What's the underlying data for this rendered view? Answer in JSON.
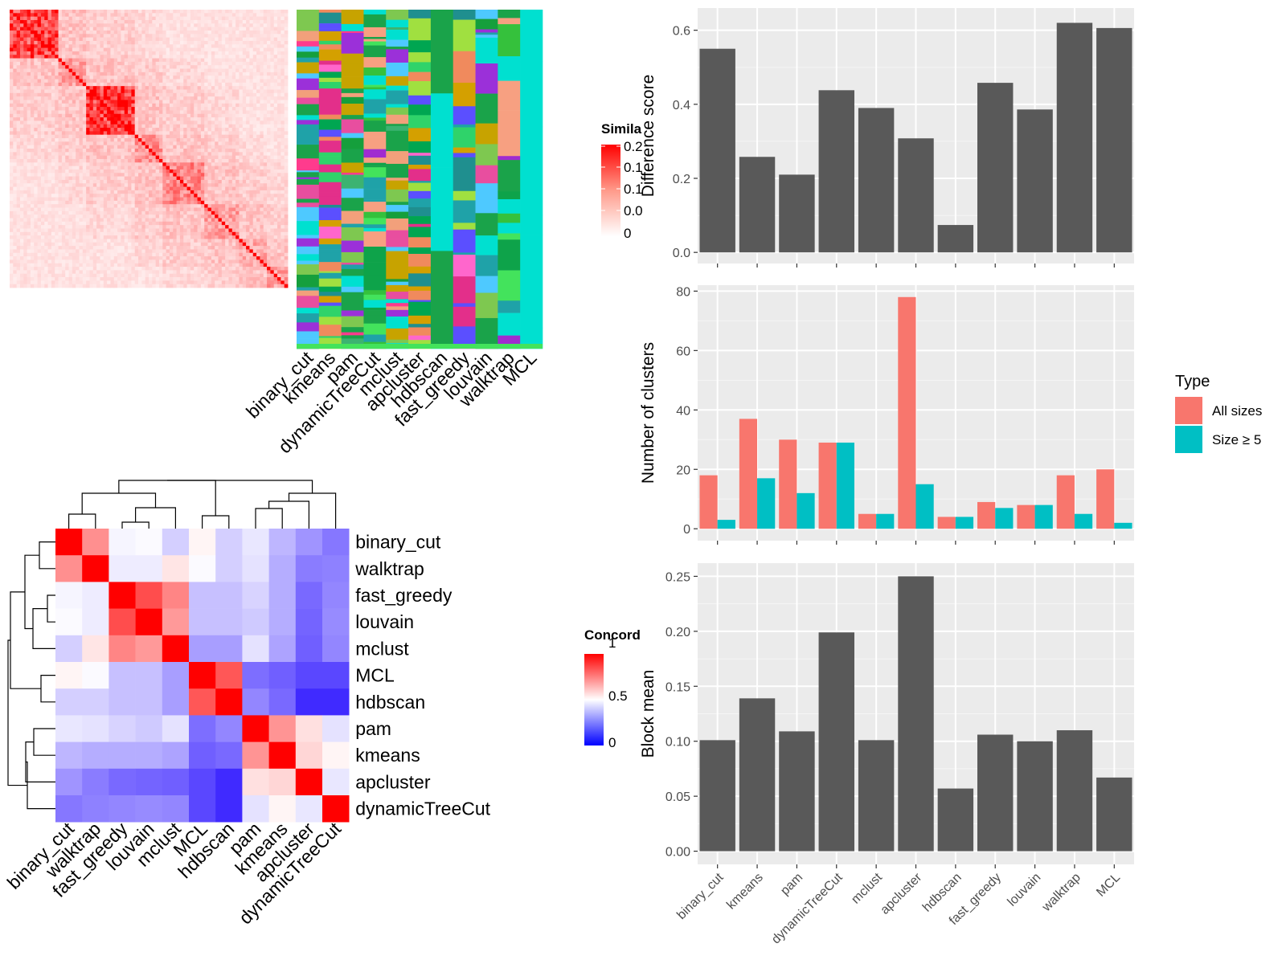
{
  "similarity_panel": {
    "legend_title": "Simila",
    "legend_ticks": [
      "0.2",
      "0.1",
      "0.1",
      "0.0",
      "0"
    ],
    "methods": [
      "binary_cut",
      "kmeans",
      "pam",
      "dynamicTreeCut",
      "mclust",
      "apcluster",
      "hdbscan",
      "fast_greedy",
      "louvain",
      "walktrap",
      "MCL"
    ]
  },
  "concordance_panel": {
    "legend_title": "Concord",
    "legend_ticks": [
      "1",
      "0.5",
      "0"
    ],
    "row_labels": [
      "binary_cut",
      "walktrap",
      "fast_greedy",
      "louvain",
      "mclust",
      "MCL",
      "hdbscan",
      "pam",
      "kmeans",
      "apcluster",
      "dynamicTreeCut"
    ],
    "col_labels": [
      "binary_cut",
      "walktrap",
      "fast_greedy",
      "louvain",
      "mclust",
      "MCL",
      "hdbscan",
      "pam",
      "kmeans",
      "apcluster",
      "dynamicTreeCut"
    ],
    "matrix": [
      [
        1.0,
        0.72,
        0.48,
        0.49,
        0.4,
        0.52,
        0.4,
        0.45,
        0.35,
        0.28,
        0.22
      ],
      [
        0.72,
        1.0,
        0.46,
        0.46,
        0.55,
        0.49,
        0.4,
        0.44,
        0.33,
        0.23,
        0.24
      ],
      [
        0.48,
        0.46,
        1.0,
        0.85,
        0.74,
        0.37,
        0.37,
        0.41,
        0.33,
        0.19,
        0.25
      ],
      [
        0.49,
        0.46,
        0.85,
        1.0,
        0.7,
        0.37,
        0.37,
        0.39,
        0.33,
        0.18,
        0.26
      ],
      [
        0.4,
        0.55,
        0.74,
        0.7,
        1.0,
        0.3,
        0.3,
        0.44,
        0.31,
        0.17,
        0.25
      ],
      [
        0.52,
        0.49,
        0.37,
        0.37,
        0.3,
        1.0,
        0.83,
        0.2,
        0.17,
        0.12,
        0.12
      ],
      [
        0.4,
        0.4,
        0.37,
        0.37,
        0.3,
        0.83,
        1.0,
        0.25,
        0.19,
        0.06,
        0.06
      ],
      [
        0.45,
        0.44,
        0.41,
        0.39,
        0.44,
        0.2,
        0.25,
        1.0,
        0.71,
        0.56,
        0.44
      ],
      [
        0.35,
        0.33,
        0.33,
        0.33,
        0.31,
        0.17,
        0.19,
        0.71,
        1.0,
        0.58,
        0.52
      ],
      [
        0.28,
        0.23,
        0.19,
        0.18,
        0.17,
        0.12,
        0.06,
        0.56,
        0.58,
        1.0,
        0.45
      ],
      [
        0.22,
        0.24,
        0.25,
        0.26,
        0.25,
        0.12,
        0.06,
        0.44,
        0.52,
        0.45,
        1.0
      ]
    ]
  },
  "chart_data": [
    {
      "type": "bar",
      "categories": [
        "binary_cut",
        "kmeans",
        "pam",
        "dynamicTreeCut",
        "mclust",
        "apcluster",
        "hdbscan",
        "fast_greedy",
        "louvain",
        "walktrap",
        "MCL"
      ],
      "values": [
        0.55,
        0.258,
        0.21,
        0.438,
        0.39,
        0.308,
        0.074,
        0.458,
        0.386,
        0.62,
        0.606
      ],
      "ylabel": "Difference score",
      "ylim": [
        -0.03,
        0.66
      ],
      "yticks": [
        "0.0",
        "0.2",
        "0.4",
        "0.6"
      ],
      "ytick_values": [
        0,
        0.2,
        0.4,
        0.6
      ],
      "bar_color": "#595959",
      "panel_bg": "#ebebeb"
    },
    {
      "type": "bar",
      "categories": [
        "binary_cut",
        "kmeans",
        "pam",
        "dynamicTreeCut",
        "mclust",
        "apcluster",
        "hdbscan",
        "fast_greedy",
        "louvain",
        "walktrap",
        "MCL"
      ],
      "series": [
        {
          "name": "All sizes",
          "values": [
            18,
            37,
            30,
            29,
            5,
            78,
            4,
            9,
            8,
            18,
            20
          ],
          "color": "#f8766d"
        },
        {
          "name": "Size ≥ 5",
          "values": [
            3,
            17,
            12,
            29,
            5,
            15,
            4,
            7,
            8,
            5,
            2
          ],
          "color": "#00bfc4"
        }
      ],
      "ylabel": "Number of clusters",
      "ylim": [
        -4,
        82
      ],
      "yticks": [
        "0",
        "20",
        "40",
        "60",
        "80"
      ],
      "ytick_values": [
        0,
        20,
        40,
        60,
        80
      ],
      "legend_title": "Type",
      "legend_position": "right",
      "panel_bg": "#ebebeb"
    },
    {
      "type": "bar",
      "categories": [
        "binary_cut",
        "kmeans",
        "pam",
        "dynamicTreeCut",
        "mclust",
        "apcluster",
        "hdbscan",
        "fast_greedy",
        "louvain",
        "walktrap",
        "MCL"
      ],
      "values": [
        0.101,
        0.139,
        0.109,
        0.199,
        0.101,
        0.25,
        0.057,
        0.106,
        0.1,
        0.11,
        0.067
      ],
      "ylabel": "Block mean",
      "ylim": [
        -0.012,
        0.262
      ],
      "yticks": [
        "0.00",
        "0.05",
        "0.10",
        "0.15",
        "0.20",
        "0.25"
      ],
      "ytick_values": [
        0,
        0.05,
        0.1,
        0.15,
        0.2,
        0.25
      ],
      "bar_color": "#595959",
      "panel_bg": "#ebebeb"
    }
  ]
}
